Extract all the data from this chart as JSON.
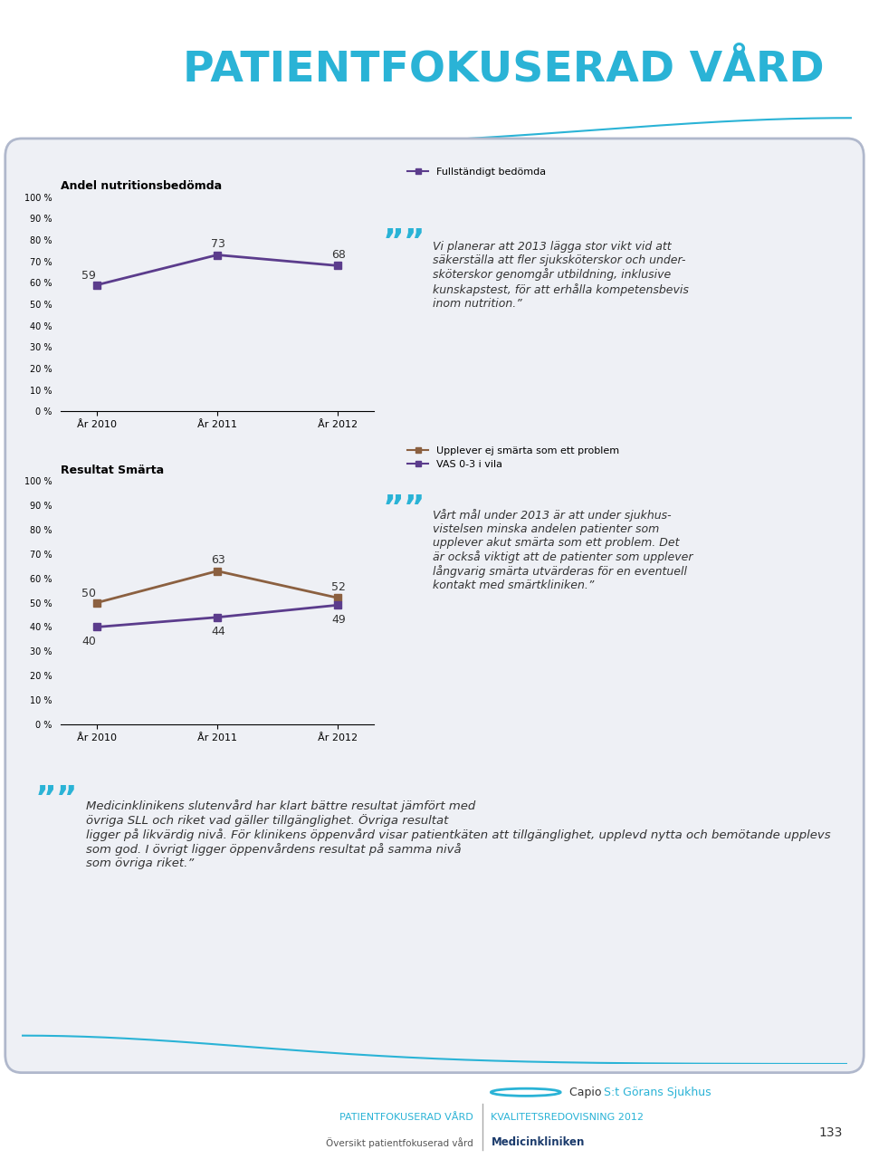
{
  "page_bg": "#ffffff",
  "card_bg": "#eef0f5",
  "header_bg": "#9aa3be",
  "header_year": "2012",
  "header_title": "PATIENTFOKUSERAD VÅRD",
  "header_title_color": "#2ab3d6",
  "chart1_title": "Andel nutritionsbedömda",
  "chart1_x": [
    "År 2010",
    "År 2011",
    "År 2012"
  ],
  "chart1_series": [
    {
      "label": "Fullständigt bedömda",
      "values": [
        59,
        73,
        68
      ],
      "color": "#5b3c8c",
      "marker": "s"
    }
  ],
  "chart1_ylim": [
    0,
    100
  ],
  "chart1_yticks": [
    0,
    10,
    20,
    30,
    40,
    50,
    60,
    70,
    80,
    90,
    100
  ],
  "chart1_text": "Vi planerar att 2013 lägga stor vikt vid att\nsäkerställa att fler sjuksköterskor och under-\nsköterskor genomgår utbildning, inklusive\nkunskapstest, för att erhålla kompetensbevis\ninom nutrition.”",
  "chart2_title": "Resultat Smärta",
  "chart2_x": [
    "År 2010",
    "År 2011",
    "År 2012"
  ],
  "chart2_series": [
    {
      "label": "Upplever ej smärta som ett problem",
      "values": [
        50,
        63,
        52
      ],
      "color": "#8b6040",
      "marker": "s"
    },
    {
      "label": "VAS 0-3 i vila",
      "values": [
        40,
        44,
        49
      ],
      "color": "#5b3c8c",
      "marker": "s"
    }
  ],
  "chart2_ylim": [
    0,
    100
  ],
  "chart2_yticks": [
    0,
    10,
    20,
    30,
    40,
    50,
    60,
    70,
    80,
    90,
    100
  ],
  "chart2_text": "Vårt mål under 2013 är att under sjukhus-\nvistelsen minska andelen patienter som\nupplever akut smärta som ett problem. Det\när också viktigt att de patienter som upplever\nlångvarig smärta utvärderas för en eventuell\nkontakt med smärtkliniken.”",
  "bottom_text": "Medicinklinikens slutenvård har klart bättre resultat jämfört med\növriga SLL och riket vad gäller tillgänglighet. Övriga resultat\nligger på likvärdig nivå. För klinikens öppenvård visar patientkäten att tillgänglighet, upplevd nytta och bemötande upplevs\nsom god. I övrigt ligger öppenvårdens resultat på samma nivå\nsom övriga riket.”",
  "footer_left1": "PATIENTFOKUSERAD VÅRD",
  "footer_left2": "Översikt patientfokuserad vård",
  "footer_right1": "KVALITETSREDOVISNING 2012",
  "footer_right2": "Medicinkliniken",
  "footer_page": "133",
  "footer_color_left": "#2ab3d6",
  "footer_color_right1": "#2ab3d6",
  "footer_color_right2": "#1a3a6b",
  "quote_color": "#2ab3d6",
  "text_color": "#333333",
  "purple": "#5b3c8c",
  "brown": "#8b6040"
}
